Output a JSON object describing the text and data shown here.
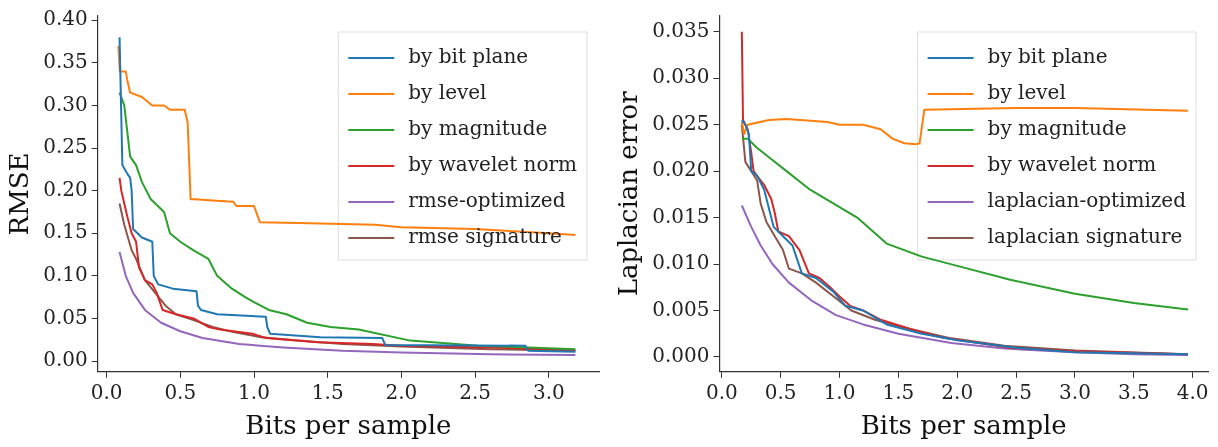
{
  "chart_data": [
    {
      "type": "line",
      "xlabel": "Bits per sample",
      "ylabel": "RMSE",
      "legend": "top right",
      "marker": "none",
      "line_style": "solid",
      "xlim": [
        -0.06,
        3.34
      ],
      "ylim": [
        -0.0126,
        0.405
      ],
      "xticks": [
        {
          "value": 0,
          "label": "0.0"
        },
        {
          "value": 0.5,
          "label": "0.5"
        },
        {
          "value": 1,
          "label": "1.0"
        },
        {
          "value": 1.5,
          "label": "1.5"
        },
        {
          "value": 2,
          "label": "2.0"
        },
        {
          "value": 2.5,
          "label": "2.5"
        },
        {
          "value": 3,
          "label": "3.0"
        }
      ],
      "yticks": [
        {
          "value": 0,
          "label": "0.00"
        },
        {
          "value": 0.05,
          "label": "0.05"
        },
        {
          "value": 0.1,
          "label": "0.10"
        },
        {
          "value": 0.15,
          "label": "0.15"
        },
        {
          "value": 0.2,
          "label": "0.20"
        },
        {
          "value": 0.25,
          "label": "0.25"
        },
        {
          "value": 0.3,
          "label": "0.30"
        },
        {
          "value": 0.35,
          "label": "0.35"
        },
        {
          "value": 0.4,
          "label": "0.40"
        }
      ],
      "series": [
        {
          "name": "by bit plane",
          "color": "#1f77b4",
          "x": [
            0.088,
            0.09,
            0.107,
            0.14,
            0.16,
            0.17,
            0.18,
            0.24,
            0.31,
            0.32,
            0.35,
            0.45,
            0.61,
            0.62,
            0.64,
            0.75,
            1.08,
            1.09,
            1.11,
            1.45,
            1.87,
            1.89,
            2.84,
            2.86,
            3.18
          ],
          "values": [
            0.38,
            0.38,
            0.23,
            0.22,
            0.215,
            0.2,
            0.155,
            0.145,
            0.14,
            0.1,
            0.09,
            0.085,
            0.082,
            0.065,
            0.06,
            0.055,
            0.052,
            0.04,
            0.032,
            0.028,
            0.027,
            0.019,
            0.018,
            0.012,
            0.011
          ]
        },
        {
          "name": "by level",
          "color": "#ff7f0e",
          "x": [
            0.08,
            0.09,
            0.13,
            0.14,
            0.16,
            0.24,
            0.31,
            0.39,
            0.43,
            0.53,
            0.55,
            0.57,
            0.6,
            0.77,
            0.86,
            0.88,
            1.0,
            1.04,
            1.3,
            1.82,
            2.0,
            2.5,
            3.0,
            3.18
          ],
          "values": [
            0.37,
            0.34,
            0.34,
            0.33,
            0.315,
            0.31,
            0.3,
            0.3,
            0.295,
            0.295,
            0.28,
            0.19,
            0.19,
            0.188,
            0.187,
            0.182,
            0.182,
            0.163,
            0.162,
            0.16,
            0.157,
            0.155,
            0.15,
            0.148
          ]
        },
        {
          "name": "by magnitude",
          "color": "#2ca02c",
          "x": [
            0.088,
            0.12,
            0.14,
            0.16,
            0.2,
            0.24,
            0.3,
            0.39,
            0.43,
            0.5,
            0.59,
            0.69,
            0.75,
            0.85,
            0.94,
            0.99,
            1.1,
            1.22,
            1.36,
            1.52,
            1.71,
            2.06,
            2.52,
            3.18
          ],
          "values": [
            0.315,
            0.3,
            0.27,
            0.24,
            0.23,
            0.21,
            0.19,
            0.175,
            0.15,
            0.14,
            0.13,
            0.12,
            0.1,
            0.085,
            0.075,
            0.07,
            0.06,
            0.055,
            0.045,
            0.04,
            0.037,
            0.024,
            0.018,
            0.014
          ]
        },
        {
          "name": "by wavelet norm",
          "color": "#d62728",
          "x": [
            0.088,
            0.1,
            0.14,
            0.17,
            0.2,
            0.22,
            0.26,
            0.31,
            0.34,
            0.38,
            0.47,
            0.59,
            0.69,
            0.77,
            0.99,
            1.08,
            1.43,
            1.8,
            2.0,
            2.6,
            3.18
          ],
          "values": [
            0.215,
            0.2,
            0.17,
            0.15,
            0.14,
            0.11,
            0.095,
            0.09,
            0.08,
            0.06,
            0.055,
            0.05,
            0.04,
            0.037,
            0.032,
            0.027,
            0.022,
            0.02,
            0.018,
            0.016,
            0.013
          ]
        },
        {
          "name": "rmse-optimized",
          "color": "#9467bd",
          "x": [
            0.088,
            0.13,
            0.18,
            0.26,
            0.37,
            0.5,
            0.65,
            0.9,
            1.2,
            1.6,
            2.0,
            2.6,
            3.18
          ],
          "values": [
            0.128,
            0.1,
            0.08,
            0.06,
            0.045,
            0.035,
            0.027,
            0.02,
            0.016,
            0.012,
            0.01,
            0.008,
            0.007
          ]
        },
        {
          "name": "rmse signature",
          "color": "#8c564b",
          "x": [
            0.088,
            0.12,
            0.17,
            0.2,
            0.26,
            0.33,
            0.4,
            0.47,
            0.59,
            0.72,
            0.86,
            1.05,
            1.3,
            1.6,
            2.0,
            2.6,
            3.18
          ],
          "values": [
            0.185,
            0.16,
            0.13,
            0.12,
            0.095,
            0.08,
            0.065,
            0.055,
            0.048,
            0.04,
            0.034,
            0.028,
            0.024,
            0.02,
            0.017,
            0.014,
            0.012
          ]
        }
      ]
    },
    {
      "type": "line",
      "xlabel": "Bits per sample",
      "ylabel": "Laplacian error",
      "legend": "top right",
      "marker": "none",
      "line_style": "solid",
      "xlim": [
        -0.02,
        4.13
      ],
      "ylim": [
        -0.0016,
        0.0367
      ],
      "xticks": [
        {
          "value": 0,
          "label": "0.0"
        },
        {
          "value": 0.5,
          "label": "0.5"
        },
        {
          "value": 1,
          "label": "1.0"
        },
        {
          "value": 1.5,
          "label": "1.5"
        },
        {
          "value": 2,
          "label": "2.0"
        },
        {
          "value": 2.5,
          "label": "2.5"
        },
        {
          "value": 3,
          "label": "3.0"
        },
        {
          "value": 3.5,
          "label": "3.5"
        },
        {
          "value": 4,
          "label": "4.0"
        }
      ],
      "yticks": [
        {
          "value": 0,
          "label": "0.000"
        },
        {
          "value": 0.005,
          "label": "0.005"
        },
        {
          "value": 0.01,
          "label": "0.010"
        },
        {
          "value": 0.015,
          "label": "0.015"
        },
        {
          "value": 0.02,
          "label": "0.020"
        },
        {
          "value": 0.025,
          "label": "0.025"
        },
        {
          "value": 0.03,
          "label": "0.030"
        },
        {
          "value": 0.035,
          "label": "0.035"
        }
      ],
      "series": [
        {
          "name": "by bit plane",
          "color": "#1f77b4",
          "x": [
            0.17,
            0.2,
            0.23,
            0.25,
            0.3,
            0.36,
            0.4,
            0.44,
            0.52,
            0.6,
            0.68,
            0.8,
            0.95,
            1.05,
            1.2,
            1.4,
            1.7,
            2.0,
            2.5,
            3.0,
            3.96
          ],
          "values": [
            0.0255,
            0.025,
            0.024,
            0.02,
            0.0195,
            0.018,
            0.016,
            0.014,
            0.013,
            0.012,
            0.009,
            0.0085,
            0.007,
            0.0055,
            0.005,
            0.0035,
            0.0025,
            0.0018,
            0.001,
            0.0005,
            0.0003
          ]
        },
        {
          "name": "by level",
          "color": "#ff7f0e",
          "x": [
            0.17,
            0.19,
            0.22,
            0.4,
            0.55,
            0.9,
            1.0,
            1.2,
            1.35,
            1.45,
            1.55,
            1.65,
            1.68,
            1.72,
            2.5,
            3.0,
            3.96
          ],
          "values": [
            0.0253,
            0.024,
            0.025,
            0.0255,
            0.0256,
            0.0253,
            0.025,
            0.025,
            0.0245,
            0.0235,
            0.023,
            0.0229,
            0.023,
            0.0266,
            0.0268,
            0.0268,
            0.0265
          ]
        },
        {
          "name": "by magnitude",
          "color": "#2ca02c",
          "x": [
            0.17,
            0.22,
            0.3,
            0.4,
            0.55,
            0.75,
            0.95,
            1.15,
            1.4,
            1.7,
            2.0,
            2.45,
            3.0,
            3.5,
            3.96
          ],
          "values": [
            0.0235,
            0.0235,
            0.0225,
            0.0215,
            0.02,
            0.018,
            0.0165,
            0.015,
            0.0122,
            0.0108,
            0.0098,
            0.0083,
            0.0068,
            0.0058,
            0.0051
          ]
        },
        {
          "name": "by wavelet norm",
          "color": "#d62728",
          "x": [
            0.17,
            0.18,
            0.2,
            0.22,
            0.25,
            0.27,
            0.3,
            0.36,
            0.42,
            0.45,
            0.48,
            0.57,
            0.66,
            0.74,
            0.83,
            0.92,
            1.0,
            1.09,
            1.2,
            1.35,
            1.6,
            1.87,
            2.45,
            3.0,
            3.96
          ],
          "values": [
            0.035,
            0.0255,
            0.025,
            0.0245,
            0.022,
            0.02,
            0.0195,
            0.0185,
            0.017,
            0.0155,
            0.0135,
            0.013,
            0.0115,
            0.009,
            0.0085,
            0.0075,
            0.0065,
            0.0055,
            0.005,
            0.004,
            0.003,
            0.0021,
            0.001,
            0.0006,
            0.0003
          ]
        },
        {
          "name": "laplacian-optimized",
          "color": "#9467bd",
          "x": [
            0.17,
            0.25,
            0.33,
            0.43,
            0.57,
            0.77,
            0.97,
            1.2,
            1.5,
            1.95,
            2.4,
            3.0,
            3.5,
            3.96
          ],
          "values": [
            0.0163,
            0.014,
            0.012,
            0.01,
            0.008,
            0.006,
            0.0045,
            0.0035,
            0.0025,
            0.0015,
            0.0009,
            0.0005,
            0.0003,
            0.0002
          ]
        },
        {
          "name": "laplacian signature",
          "color": "#8c564b",
          "x": [
            0.17,
            0.2,
            0.25,
            0.3,
            0.33,
            0.38,
            0.45,
            0.52,
            0.57,
            0.68,
            0.8,
            0.95,
            1.1,
            1.3,
            1.6,
            1.95,
            2.4,
            3.0,
            3.96
          ],
          "values": [
            0.025,
            0.021,
            0.02,
            0.019,
            0.0165,
            0.0145,
            0.013,
            0.0115,
            0.0095,
            0.009,
            0.008,
            0.0065,
            0.005,
            0.004,
            0.003,
            0.002,
            0.0012,
            0.0007,
            0.0003
          ]
        }
      ]
    }
  ]
}
